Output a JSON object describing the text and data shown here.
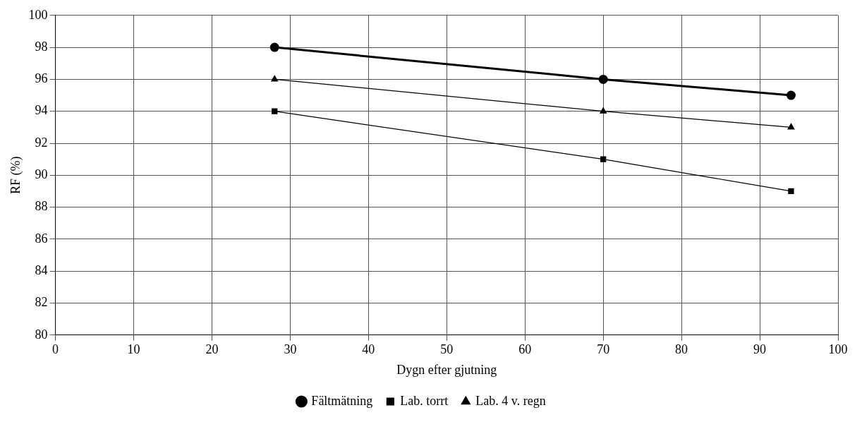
{
  "chart_data": {
    "type": "line",
    "xlabel": "Dygn efter gjutning",
    "ylabel": "RF (%)",
    "xlim": [
      0,
      100
    ],
    "xticks": [
      0,
      10,
      20,
      30,
      40,
      50,
      60,
      70,
      80,
      90,
      100
    ],
    "ylim": [
      80,
      100
    ],
    "yticks": [
      80,
      82,
      84,
      86,
      88,
      90,
      92,
      94,
      96,
      98,
      100
    ],
    "grid": true,
    "legend": "bottom",
    "line_style": "solid",
    "series": [
      {
        "name": "Fältmätning",
        "color": "#000000",
        "x": [
          28,
          70,
          94
        ],
        "values": [
          98,
          96,
          95
        ],
        "marker": "circle"
      },
      {
        "name": "Lab. torrt",
        "color": "#000000",
        "x": [
          28,
          70,
          94
        ],
        "values": [
          94,
          91,
          89
        ],
        "marker": "square"
      },
      {
        "name": "Lab. 4 v. regn",
        "color": "#000000",
        "x": [
          28,
          70,
          94
        ],
        "values": [
          96,
          94,
          93
        ],
        "marker": "triangle"
      }
    ]
  }
}
